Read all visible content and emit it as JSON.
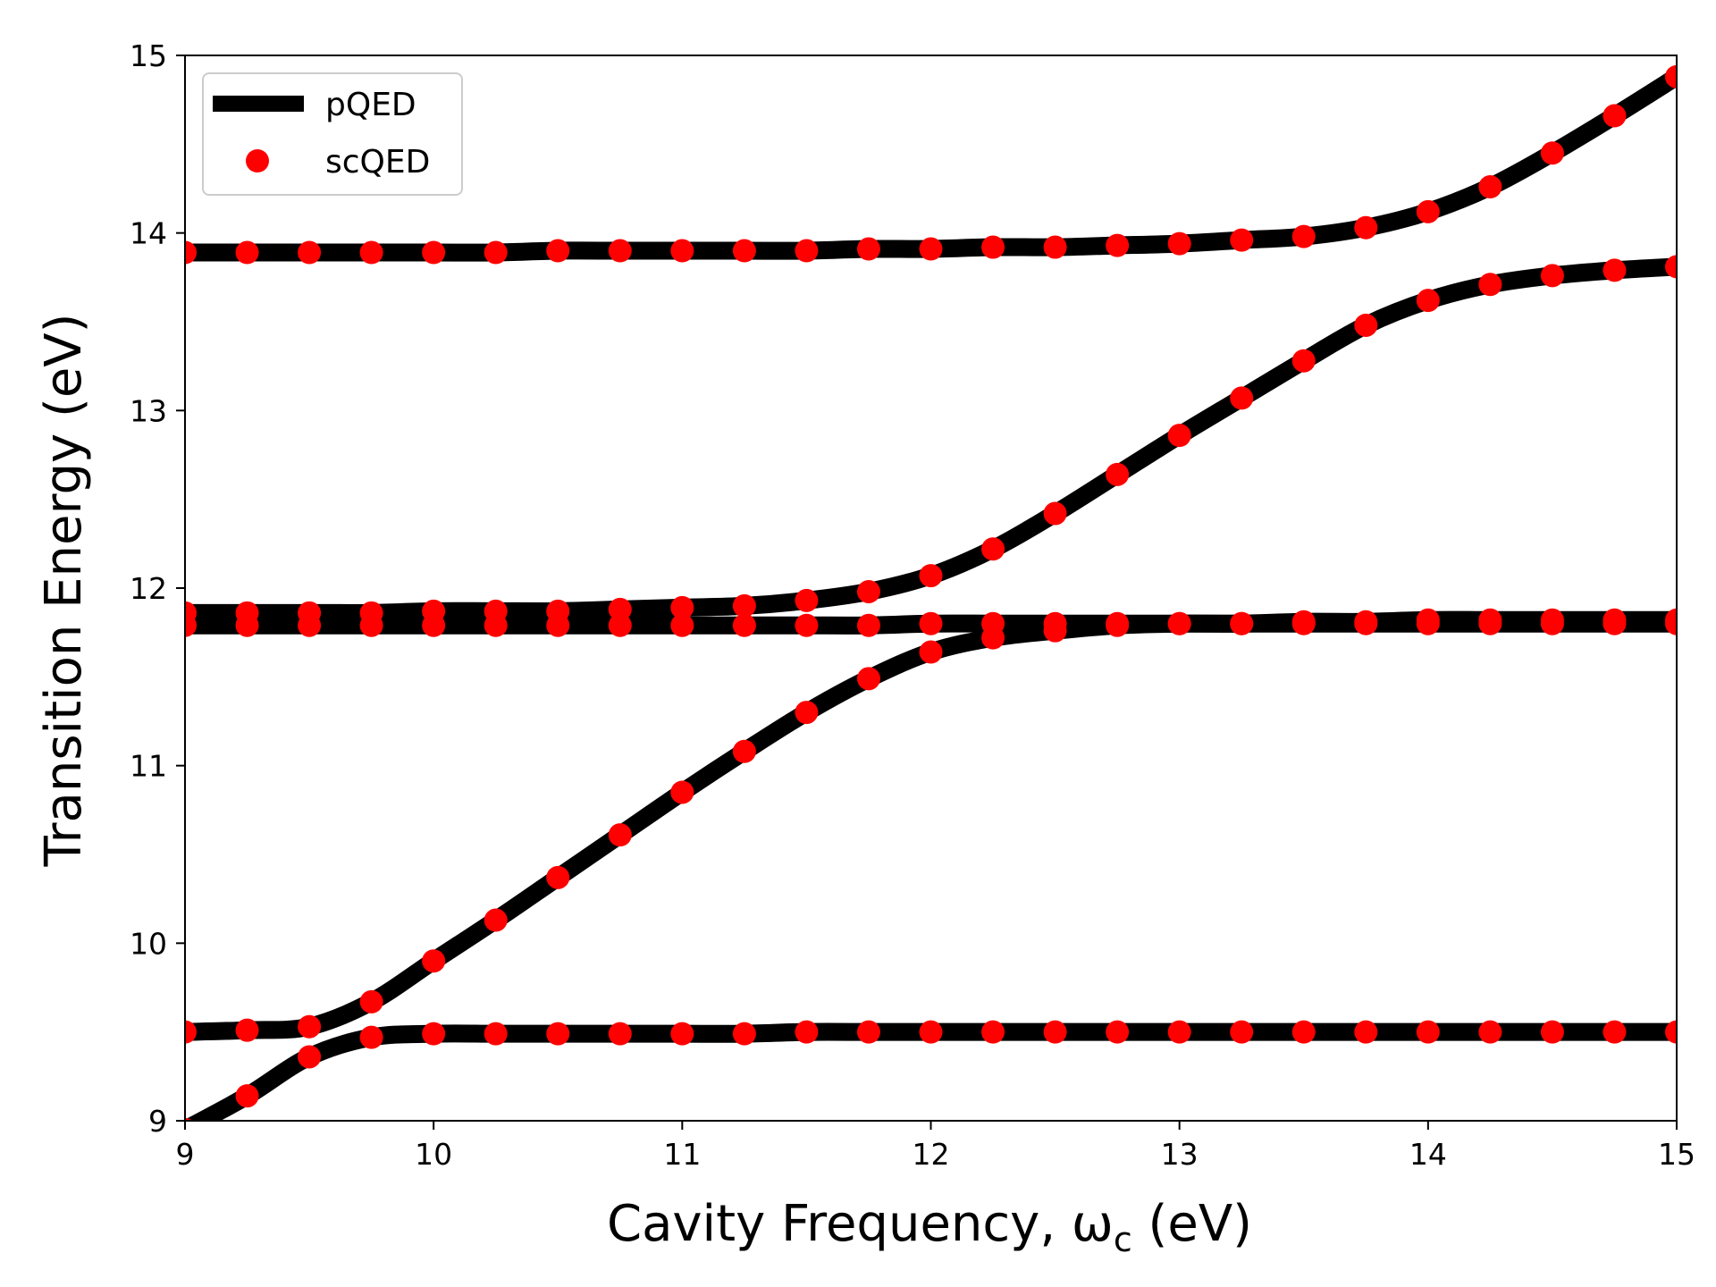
{
  "chart_data": {
    "type": "line",
    "xlabel": "Cavity Frequency, ω",
    "xlabel_sub": "c",
    "xlabel_unit": " (eV)",
    "ylabel": "Transition Energy (eV)",
    "xlim": [
      9,
      15
    ],
    "ylim": [
      9,
      15
    ],
    "grid": false,
    "legend_position": "top-left",
    "x_ticks": [
      "9",
      "10",
      "11",
      "12",
      "13",
      "14",
      "15"
    ],
    "y_ticks": [
      "9",
      "10",
      "11",
      "12",
      "13",
      "14",
      "15"
    ],
    "legend": [
      {
        "label": "pQED",
        "style": "line",
        "color": "#000000"
      },
      {
        "label": "scQED",
        "style": "marker",
        "color": "#ff0000"
      }
    ],
    "x": [
      9.0,
      9.25,
      9.5,
      9.75,
      10.0,
      10.25,
      10.5,
      10.75,
      11.0,
      11.25,
      11.5,
      11.75,
      12.0,
      12.25,
      12.5,
      12.75,
      13.0,
      13.25,
      13.5,
      13.75,
      14.0,
      14.25,
      14.5,
      14.75,
      15.0
    ],
    "series": [
      {
        "line_color": "#000000",
        "marker_color": "#ff0000",
        "values": [
          8.95,
          9.14,
          9.36,
          9.47,
          9.49,
          9.49,
          9.49,
          9.49,
          9.49,
          9.49,
          9.5,
          9.5,
          9.5,
          9.5,
          9.5,
          9.5,
          9.5,
          9.5,
          9.5,
          9.5,
          9.5,
          9.5,
          9.5,
          9.5,
          9.5
        ]
      },
      {
        "line_color": "#000000",
        "marker_color": "#ff0000",
        "values": [
          9.5,
          9.51,
          9.53,
          9.67,
          9.9,
          10.13,
          10.37,
          10.61,
          10.85,
          11.08,
          11.3,
          11.49,
          11.64,
          11.72,
          11.76,
          11.79,
          11.8,
          11.8,
          11.81,
          11.81,
          11.82,
          11.82,
          11.82,
          11.82,
          11.82
        ]
      },
      {
        "line_color": "#000000",
        "marker_color": "#ff0000",
        "values": [
          11.79,
          11.79,
          11.79,
          11.79,
          11.79,
          11.79,
          11.79,
          11.79,
          11.79,
          11.79,
          11.79,
          11.79,
          11.8,
          11.8,
          11.8,
          11.8,
          11.8,
          11.8,
          11.8,
          11.8,
          11.8,
          11.8,
          11.8,
          11.8,
          11.8
        ]
      },
      {
        "line_color": "#000000",
        "marker_color": "#ff0000",
        "values": [
          11.86,
          11.86,
          11.86,
          11.86,
          11.87,
          11.87,
          11.87,
          11.88,
          11.89,
          11.9,
          11.93,
          11.98,
          12.07,
          12.22,
          12.42,
          12.64,
          12.86,
          13.07,
          13.28,
          13.48,
          13.62,
          13.71,
          13.76,
          13.79,
          13.81
        ]
      },
      {
        "line_color": "#000000",
        "marker_color": "#ff0000",
        "values": [
          13.89,
          13.89,
          13.89,
          13.89,
          13.89,
          13.89,
          13.9,
          13.9,
          13.9,
          13.9,
          13.9,
          13.91,
          13.91,
          13.92,
          13.92,
          13.93,
          13.94,
          13.96,
          13.98,
          14.03,
          14.12,
          14.26,
          14.45,
          14.66,
          14.88
        ]
      }
    ]
  }
}
